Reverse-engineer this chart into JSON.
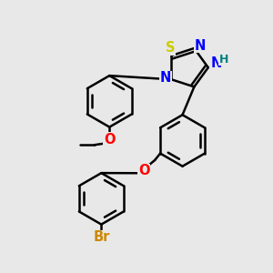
{
  "bg_color": "#e8e8e8",
  "atom_colors": {
    "S": "#cccc00",
    "N": "#0000ff",
    "O": "#ff0000",
    "Br": "#cc8800",
    "H": "#008080",
    "C": "#000000"
  },
  "bond_color": "#000000",
  "bond_width": 1.8,
  "font_size": 10.5
}
